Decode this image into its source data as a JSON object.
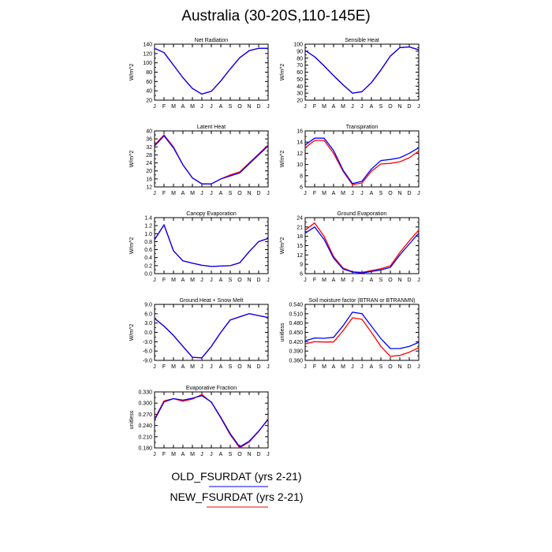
{
  "figure": {
    "title": "Australia (30-20S,110-145E)",
    "colors": {
      "old": "#0000ff",
      "new": "#ff0000"
    }
  },
  "legend": {
    "entries": [
      {
        "label": "OLD_FSURDAT (yrs 2-21)",
        "color": "#0000ff"
      },
      {
        "label": "NEW_FSURDAT (yrs 2-21)",
        "color": "#ff0000"
      }
    ]
  },
  "chart_data": [
    {
      "type": "line",
      "title": "Net Radiation",
      "ylabel": "W/m^2",
      "x": [
        "J",
        "F",
        "M",
        "A",
        "M",
        "J",
        "J",
        "A",
        "S",
        "O",
        "N",
        "D",
        "J"
      ],
      "ylim": [
        20,
        140
      ],
      "yticks": [
        20,
        40,
        60,
        80,
        100,
        120,
        140
      ],
      "ytick_labels": [
        "20",
        "40",
        "60",
        "80",
        "100",
        "120",
        "140"
      ],
      "series": [
        {
          "values": [
            131,
            122,
            95,
            68,
            45,
            33,
            39,
            61,
            87,
            111,
            126,
            131,
            131
          ],
          "color": "#0000ff"
        },
        {
          "values": [
            131,
            122,
            95,
            68,
            45,
            33,
            39,
            61,
            87,
            111,
            126,
            131,
            131
          ],
          "color": "#ff0000"
        }
      ]
    },
    {
      "type": "line",
      "title": "Sensible Heat",
      "ylabel": "W/m^2",
      "x": [
        "J",
        "F",
        "M",
        "A",
        "M",
        "J",
        "J",
        "A",
        "S",
        "O",
        "N",
        "D",
        "J"
      ],
      "ylim": [
        20,
        100
      ],
      "yticks": [
        20,
        30,
        40,
        50,
        60,
        70,
        80,
        90,
        100
      ],
      "ytick_labels": [
        "20",
        "30",
        "40",
        "50",
        "60",
        "70",
        "80",
        "90",
        "100"
      ],
      "series": [
        {
          "values": [
            91,
            82,
            69,
            55,
            42,
            30,
            32,
            45,
            63,
            83,
            95,
            96,
            92
          ],
          "color": "#0000ff"
        },
        {
          "values": [
            91,
            82,
            69,
            55,
            42,
            30,
            32,
            45,
            63,
            83,
            95,
            96,
            92
          ],
          "color": "#ff0000"
        }
      ]
    },
    {
      "type": "line",
      "title": "Latent Heat",
      "ylabel": "W/m^2",
      "x": [
        "J",
        "F",
        "M",
        "A",
        "M",
        "J",
        "J",
        "A",
        "S",
        "O",
        "N",
        "D",
        "J"
      ],
      "ylim": [
        12,
        40
      ],
      "yticks": [
        12,
        16,
        20,
        24,
        28,
        32,
        36,
        40
      ],
      "ytick_labels": [
        "12",
        "16",
        "20",
        "24",
        "28",
        "32",
        "36",
        "40"
      ],
      "series": [
        {
          "values": [
            32.5,
            37.5,
            31.5,
            23,
            16.5,
            13.5,
            13.5,
            16,
            17.5,
            19,
            23.5,
            28,
            32.5
          ],
          "color": "#0000ff"
        },
        {
          "values": [
            33,
            38,
            32,
            23,
            16.5,
            13.5,
            13.5,
            16,
            18,
            19.5,
            24,
            28.5,
            33
          ],
          "color": "#ff0000"
        }
      ]
    },
    {
      "type": "line",
      "title": "Transpiration",
      "ylabel": "W/m^2",
      "x": [
        "J",
        "F",
        "M",
        "A",
        "M",
        "J",
        "J",
        "A",
        "S",
        "O",
        "N",
        "D",
        "J"
      ],
      "ylim": [
        6,
        16
      ],
      "yticks": [
        6,
        8,
        10,
        12,
        14,
        16
      ],
      "ytick_labels": [
        "6",
        "8",
        "10",
        "12",
        "14",
        "16"
      ],
      "series": [
        {
          "values": [
            13.5,
            14.7,
            14.7,
            12.5,
            9,
            6.6,
            7,
            9.2,
            10.7,
            10.9,
            11.2,
            12,
            13
          ],
          "color": "#0000ff"
        },
        {
          "values": [
            13,
            14.3,
            14.3,
            12,
            8.8,
            6.4,
            6.7,
            8.8,
            10.1,
            10.2,
            10.5,
            11.2,
            12.4
          ],
          "color": "#ff0000"
        }
      ]
    },
    {
      "type": "line",
      "title": "Canopy Evaporation",
      "ylabel": "W/m^2",
      "x": [
        "J",
        "F",
        "M",
        "A",
        "M",
        "J",
        "J",
        "A",
        "S",
        "O",
        "N",
        "D",
        "J"
      ],
      "ylim": [
        0,
        1.4
      ],
      "yticks": [
        0,
        0.2,
        0.4,
        0.6,
        0.8,
        1.0,
        1.2,
        1.4
      ],
      "ytick_labels": [
        "0.0",
        "0.2",
        "0.4",
        "0.6",
        "0.8",
        "1.0",
        "1.2",
        "1.4"
      ],
      "series": [
        {
          "values": [
            0.85,
            1.22,
            0.57,
            0.32,
            0.26,
            0.21,
            0.18,
            0.19,
            0.2,
            0.27,
            0.55,
            0.8,
            0.88
          ],
          "color": "#0000ff"
        },
        {
          "values": [
            0.85,
            1.22,
            0.57,
            0.32,
            0.26,
            0.21,
            0.18,
            0.19,
            0.2,
            0.27,
            0.55,
            0.8,
            0.88
          ],
          "color": "#ff0000"
        }
      ]
    },
    {
      "type": "line",
      "title": "Ground Evaporation",
      "ylabel": "W/m^2",
      "x": [
        "J",
        "F",
        "M",
        "A",
        "M",
        "J",
        "J",
        "A",
        "S",
        "O",
        "N",
        "D",
        "J"
      ],
      "ylim": [
        6,
        24
      ],
      "yticks": [
        6,
        9,
        12,
        15,
        18,
        21,
        24
      ],
      "ytick_labels": [
        "6",
        "9",
        "12",
        "15",
        "18",
        "21",
        "24"
      ],
      "series": [
        {
          "values": [
            19,
            21,
            17,
            11,
            7.5,
            6.5,
            6.2,
            6.7,
            7.2,
            8,
            12,
            15.5,
            19
          ],
          "color": "#0000ff"
        },
        {
          "values": [
            20,
            22.3,
            18,
            11.5,
            7.8,
            6.6,
            6.4,
            7,
            7.6,
            8.5,
            12.8,
            16.5,
            20
          ],
          "color": "#ff0000"
        }
      ]
    },
    {
      "type": "line",
      "title": "Ground Heat + Snow Melt",
      "ylabel": "W/m^2",
      "x": [
        "J",
        "F",
        "M",
        "A",
        "M",
        "J",
        "J",
        "A",
        "S",
        "O",
        "N",
        "D",
        "J"
      ],
      "ylim": [
        -9,
        9
      ],
      "yticks": [
        -9,
        -6,
        -3,
        0,
        3,
        6,
        9
      ],
      "ytick_labels": [
        "-9.0",
        "-6.0",
        "-3.0",
        "0.0",
        "3.0",
        "6.0",
        "9.0"
      ],
      "series": [
        {
          "values": [
            4.5,
            2,
            -1,
            -4.5,
            -8,
            -8.2,
            -4.5,
            0,
            4,
            5,
            6,
            5.4,
            4.8
          ],
          "color": "#0000ff"
        },
        {
          "values": [
            4.5,
            2,
            -1,
            -4.5,
            -8,
            -8.2,
            -4.5,
            0,
            4,
            5,
            6,
            5.4,
            4.8
          ],
          "color": "#ff0000"
        }
      ]
    },
    {
      "type": "line",
      "title": "Soil moisture factor (BTRAN or BTRANMN)",
      "ylabel": "unitless",
      "x": [
        "J",
        "F",
        "M",
        "A",
        "M",
        "J",
        "J",
        "A",
        "S",
        "O",
        "N",
        "D",
        "J"
      ],
      "ylim": [
        0.36,
        0.54
      ],
      "yticks": [
        0.36,
        0.39,
        0.42,
        0.45,
        0.48,
        0.51,
        0.54
      ],
      "ytick_labels": [
        "0.360",
        "0.390",
        "0.420",
        "0.450",
        "0.480",
        "0.510",
        "0.540"
      ],
      "series": [
        {
          "values": [
            0.423,
            0.432,
            0.431,
            0.434,
            0.471,
            0.515,
            0.51,
            0.47,
            0.43,
            0.398,
            0.398,
            0.405,
            0.418
          ],
          "color": "#0000ff"
        },
        {
          "values": [
            0.413,
            0.42,
            0.419,
            0.419,
            0.455,
            0.497,
            0.492,
            0.45,
            0.405,
            0.373,
            0.376,
            0.386,
            0.401
          ],
          "color": "#ff0000"
        }
      ]
    },
    {
      "type": "line",
      "title": "Evaporative Fraction",
      "ylabel": "unitless",
      "x": [
        "J",
        "F",
        "M",
        "A",
        "M",
        "J",
        "J",
        "A",
        "S",
        "O",
        "N",
        "D",
        "J"
      ],
      "ylim": [
        0.18,
        0.33
      ],
      "yticks": [
        0.18,
        0.21,
        0.24,
        0.27,
        0.3,
        0.33
      ],
      "ytick_labels": [
        "0.180",
        "0.210",
        "0.240",
        "0.270",
        "0.300",
        "0.330"
      ],
      "series": [
        {
          "values": [
            0.255,
            0.303,
            0.312,
            0.308,
            0.313,
            0.32,
            0.303,
            0.262,
            0.218,
            0.183,
            0.198,
            0.225,
            0.256
          ],
          "color": "#0000ff"
        },
        {
          "values": [
            0.258,
            0.306,
            0.312,
            0.305,
            0.311,
            0.323,
            0.302,
            0.26,
            0.215,
            0.18,
            0.196,
            0.224,
            0.258
          ],
          "color": "#ff0000"
        }
      ]
    }
  ]
}
